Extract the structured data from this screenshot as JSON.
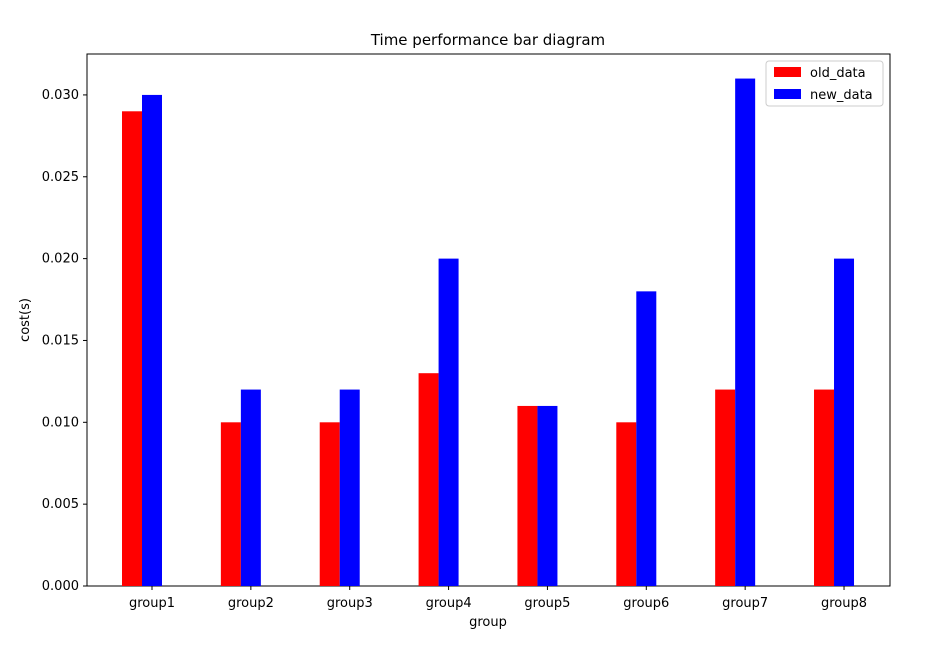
{
  "chart_data": {
    "type": "bar",
    "title": "Time performance bar diagram",
    "xlabel": "group",
    "ylabel": "cost(s)",
    "categories": [
      "group1",
      "group2",
      "group3",
      "group4",
      "group5",
      "group6",
      "group7",
      "group8"
    ],
    "series": [
      {
        "name": "old_data",
        "color": "#ff0000",
        "values": [
          0.029,
          0.01,
          0.01,
          0.013,
          0.011,
          0.01,
          0.012,
          0.012
        ]
      },
      {
        "name": "new_data",
        "color": "#0000ff",
        "values": [
          0.03,
          0.012,
          0.012,
          0.02,
          0.011,
          0.018,
          0.031,
          0.02
        ]
      }
    ],
    "ylim": [
      0,
      0.0325
    ],
    "yticks": [
      "0.000",
      "0.005",
      "0.010",
      "0.015",
      "0.020",
      "0.025",
      "0.030"
    ],
    "grid": false,
    "legend_position": "top-right"
  }
}
